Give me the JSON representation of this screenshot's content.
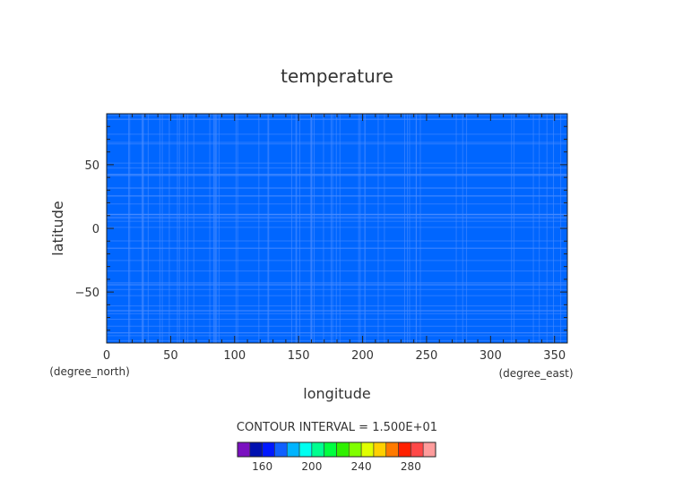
{
  "chart_data": {
    "type": "heatmap",
    "title": "temperature",
    "xlabel": "longitude",
    "ylabel": "latitude",
    "x_units": "(degree_east)",
    "y_units": "(degree_north)",
    "xlim": [
      0,
      360
    ],
    "ylim": [
      -90,
      90
    ],
    "x_ticks": [
      0,
      50,
      100,
      150,
      200,
      250,
      300,
      350
    ],
    "y_ticks": [
      -50,
      0,
      50
    ],
    "field_color": "#0066ff",
    "contour_interval_label": "CONTOUR INTERVAL = 1.500E+01",
    "colorbar": {
      "levels": [
        140,
        150,
        160,
        170,
        180,
        190,
        200,
        210,
        220,
        230,
        240,
        250,
        260,
        270,
        280,
        290,
        300
      ],
      "tick_labels": [
        160,
        200,
        240,
        280
      ],
      "colors": [
        "#7a10c0",
        "#0010b0",
        "#0018ff",
        "#1060ff",
        "#00b4ff",
        "#00fff0",
        "#00ff90",
        "#00ff40",
        "#30f000",
        "#80ff00",
        "#e0ff00",
        "#ffd000",
        "#ff7a00",
        "#ff2000",
        "#ff4848",
        "#ff9c9c"
      ]
    }
  }
}
